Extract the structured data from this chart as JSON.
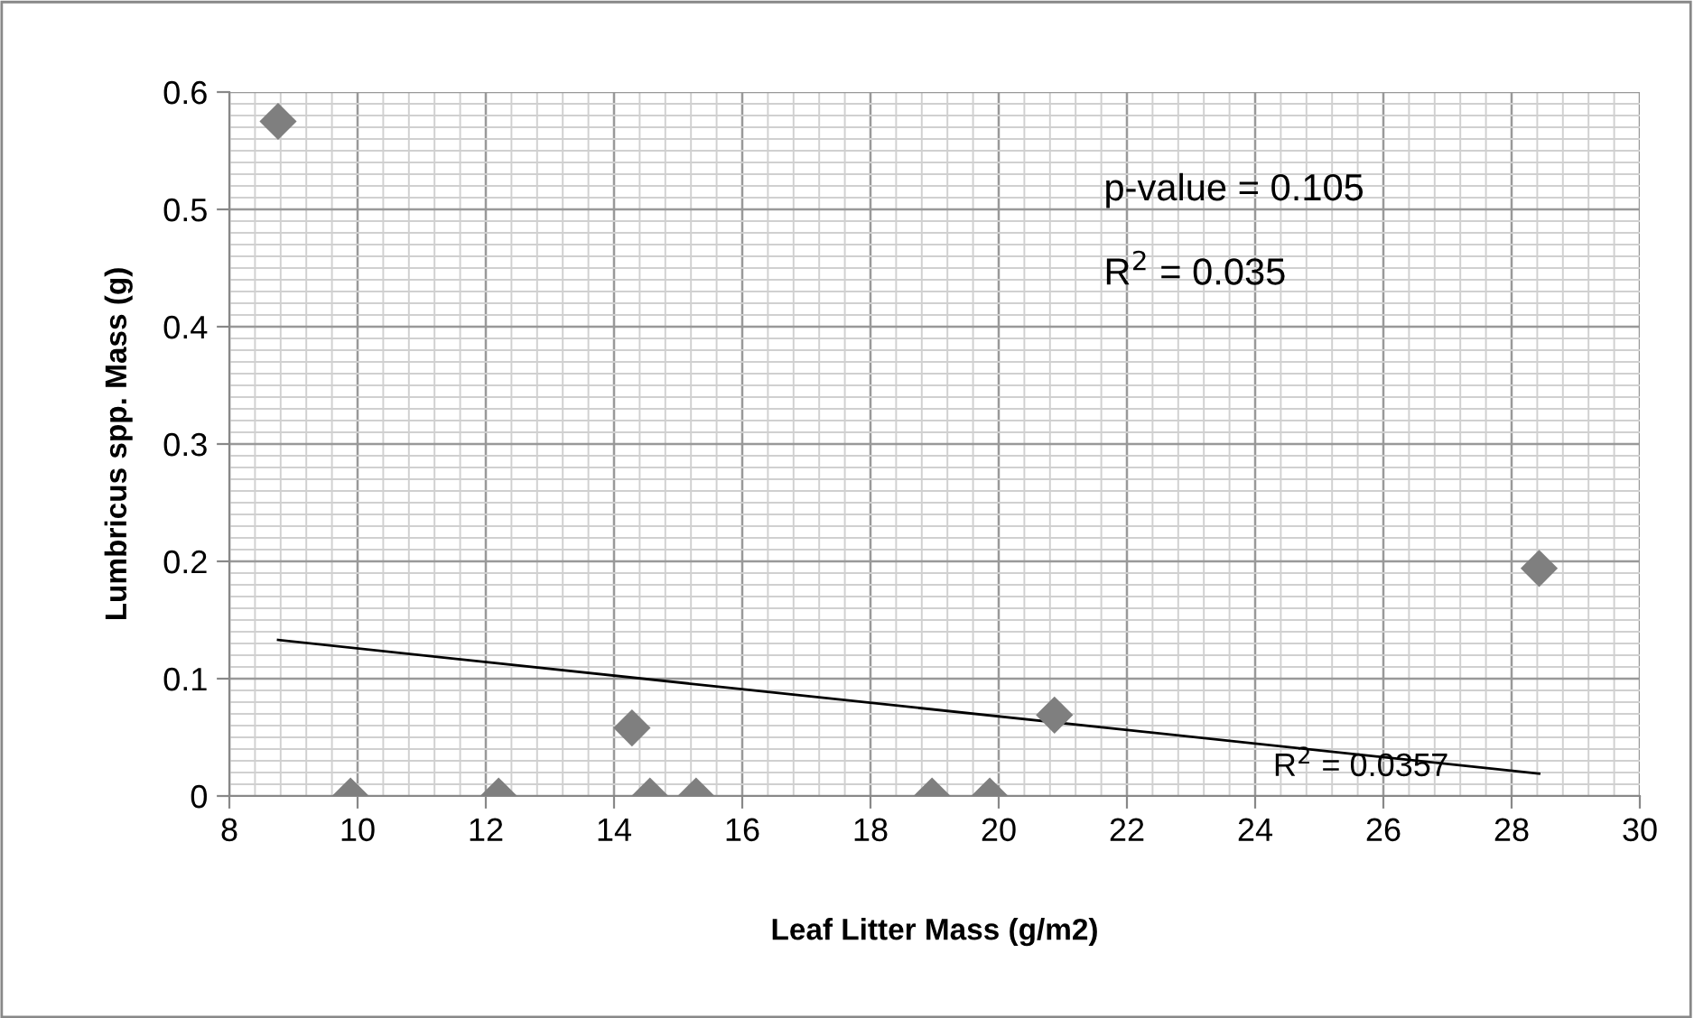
{
  "chart_data": {
    "type": "scatter",
    "xlabel": "Leaf Litter Mass (g/m2)",
    "ylabel": "Lumbricus spp. Mass (g)",
    "series": [
      {
        "color": "#7f7f7f",
        "marker": "diamond",
        "x": [
          8.76,
          9.89,
          12.2,
          14.28,
          14.56,
          15.28,
          18.96,
          19.86,
          20.87,
          28.43
        ],
        "values": [
          0.575,
          0,
          0,
          0.058,
          0,
          0,
          0,
          0,
          0.069,
          0.194
        ]
      },
      {
        "type": "line",
        "color": "#000000",
        "marker": "none",
        "line_style": "solid",
        "x": [
          8.76,
          28.43
        ],
        "values": [
          0.133,
          0.019
        ]
      }
    ],
    "annotations": [
      "p-value = 0.105",
      "R$^{2}$ = 0.035",
      "R$^{2}$ = 0.0357"
    ],
    "xlim": [
      8,
      30
    ],
    "xticks": [
      8,
      10,
      12,
      14,
      16,
      18,
      20,
      22,
      24,
      26,
      28,
      30
    ],
    "ylim": [
      0,
      0.6
    ],
    "yticks": [
      0,
      0.1,
      0.2,
      0.3,
      0.4,
      0.5,
      0.6
    ],
    "grid": true,
    "legend": false
  }
}
